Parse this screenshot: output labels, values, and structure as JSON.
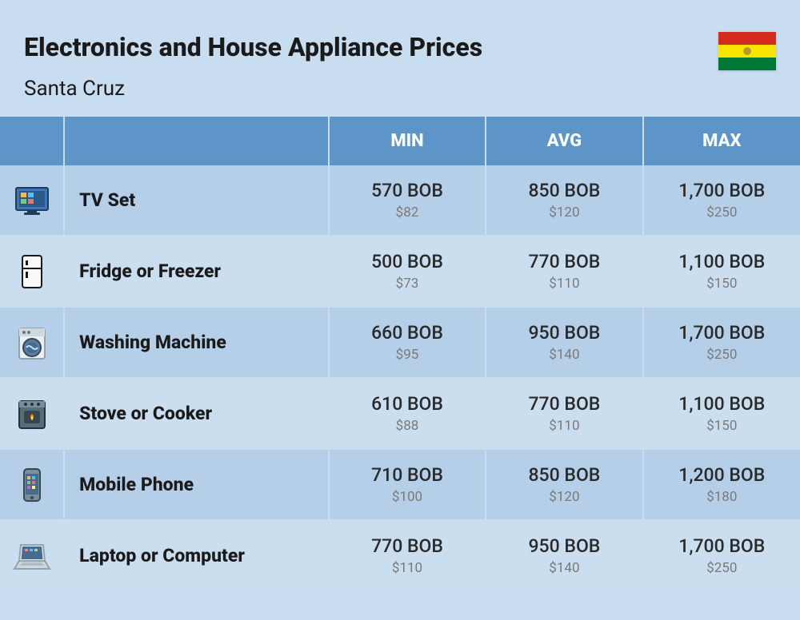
{
  "header": {
    "title": "Electronics and House Appliance Prices",
    "subtitle": "Santa Cruz"
  },
  "flag": {
    "stripe_colors": [
      "#d52b1e",
      "#f9e300",
      "#007934"
    ]
  },
  "table": {
    "columns": [
      "MIN",
      "AVG",
      "MAX"
    ],
    "header_bg": "#5d95c8",
    "header_text_color": "#ffffff",
    "row_even_bg": "#b6cfe8",
    "row_odd_bg": "#cbdef0",
    "price_main_color": "#2a2a2a",
    "price_sub_color": "#7a7a7a",
    "rows": [
      {
        "icon": "tv",
        "name": "TV Set",
        "min": {
          "local": "570 BOB",
          "usd": "$82"
        },
        "avg": {
          "local": "850 BOB",
          "usd": "$120"
        },
        "max": {
          "local": "1,700 BOB",
          "usd": "$250"
        }
      },
      {
        "icon": "fridge",
        "name": "Fridge or Freezer",
        "min": {
          "local": "500 BOB",
          "usd": "$73"
        },
        "avg": {
          "local": "770 BOB",
          "usd": "$110"
        },
        "max": {
          "local": "1,100 BOB",
          "usd": "$150"
        }
      },
      {
        "icon": "washing-machine",
        "name": "Washing Machine",
        "min": {
          "local": "660 BOB",
          "usd": "$95"
        },
        "avg": {
          "local": "950 BOB",
          "usd": "$140"
        },
        "max": {
          "local": "1,700 BOB",
          "usd": "$250"
        }
      },
      {
        "icon": "stove",
        "name": "Stove or Cooker",
        "min": {
          "local": "610 BOB",
          "usd": "$88"
        },
        "avg": {
          "local": "770 BOB",
          "usd": "$110"
        },
        "max": {
          "local": "1,100 BOB",
          "usd": "$150"
        }
      },
      {
        "icon": "mobile-phone",
        "name": "Mobile Phone",
        "min": {
          "local": "710 BOB",
          "usd": "$100"
        },
        "avg": {
          "local": "850 BOB",
          "usd": "$120"
        },
        "max": {
          "local": "1,200 BOB",
          "usd": "$180"
        }
      },
      {
        "icon": "laptop",
        "name": "Laptop or Computer",
        "min": {
          "local": "770 BOB",
          "usd": "$110"
        },
        "avg": {
          "local": "950 BOB",
          "usd": "$140"
        },
        "max": {
          "local": "1,700 BOB",
          "usd": "$250"
        }
      }
    ]
  },
  "page_bg": "#c8ddef"
}
